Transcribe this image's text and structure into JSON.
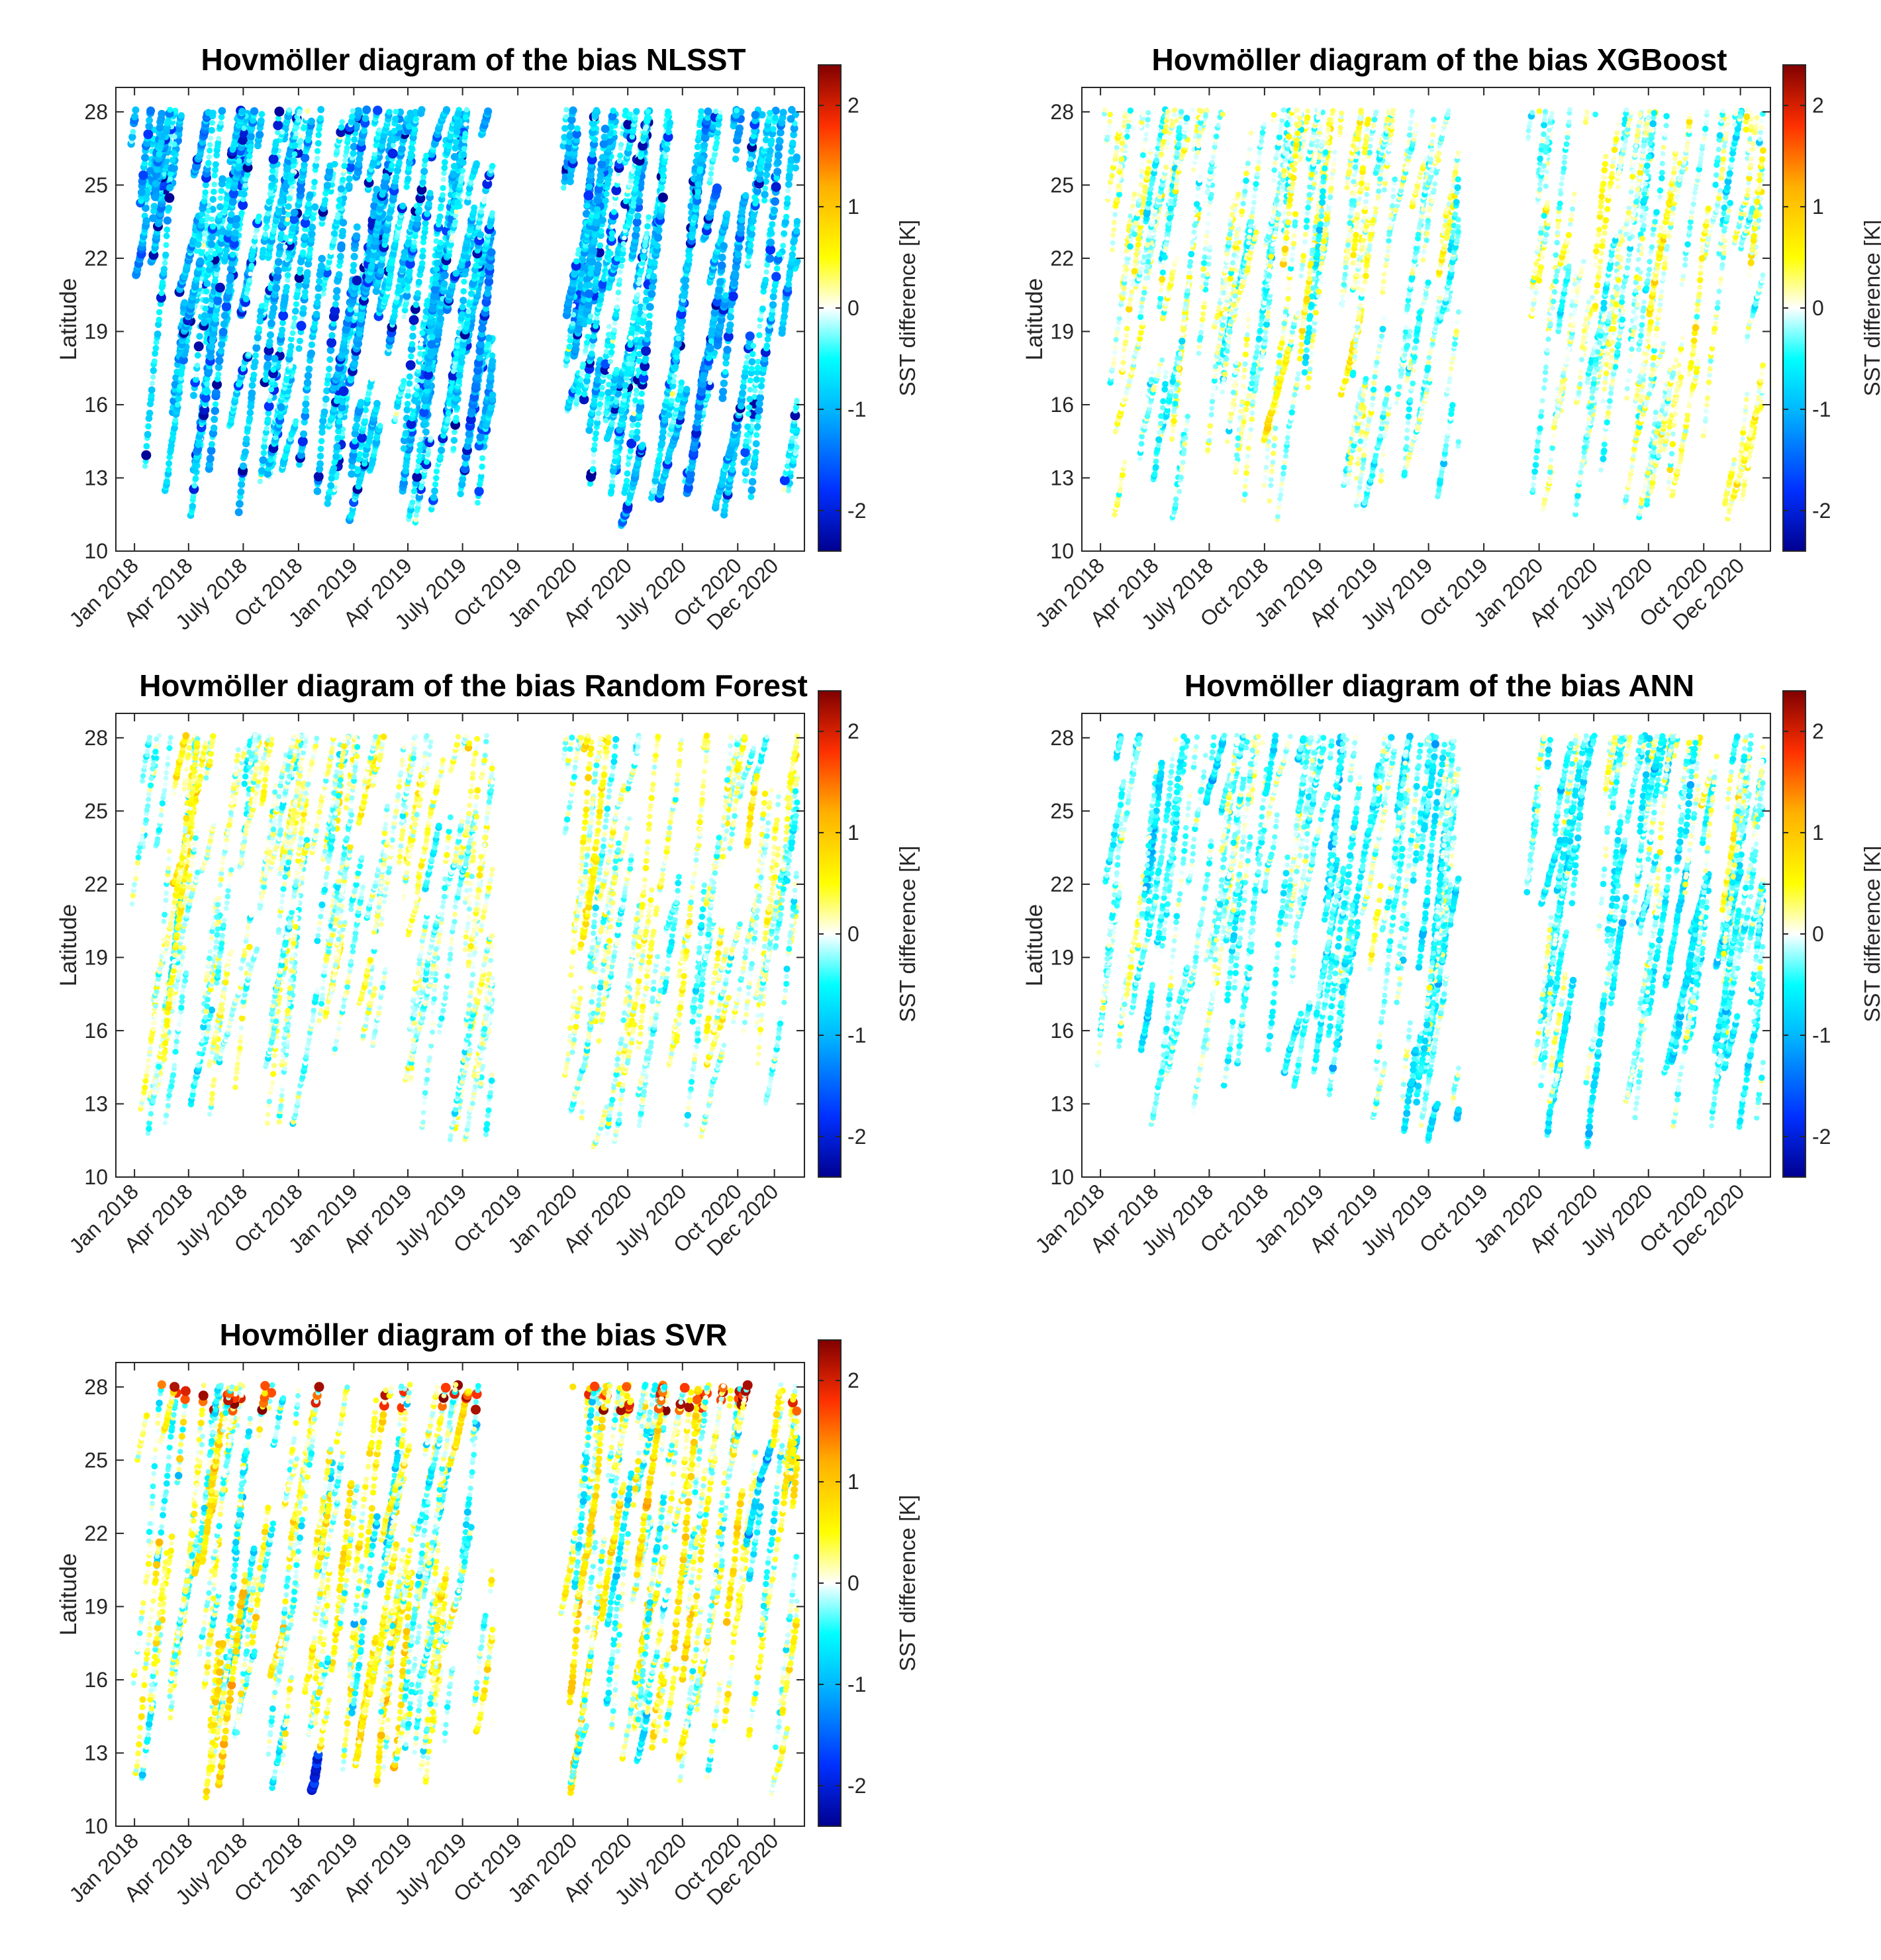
{
  "figure": {
    "colorbar": {
      "label": "SST difference [K]",
      "range": [
        -2.4,
        2.4
      ],
      "ticks": [
        -2,
        -1,
        0,
        1,
        2
      ],
      "colormap": "jet-white-center",
      "colors": [
        "#00008f",
        "#0030ff",
        "#00b8ff",
        "#00ffff",
        "#ffffff",
        "#ffff00",
        "#ffb000",
        "#ff3000",
        "#800000"
      ]
    },
    "panels": [
      {
        "id": "nlsst",
        "title": "Hovmöller diagram of the bias NLSST"
      },
      {
        "id": "xgboost",
        "title": "Hovmöller diagram of the bias XGBoost"
      },
      {
        "id": "random-forest",
        "title": "Hovmöller diagram of the bias Random Forest"
      },
      {
        "id": "ann",
        "title": "Hovmöller diagram of the bias ANN"
      },
      {
        "id": "svr",
        "title": "Hovmöller diagram of the bias SVR"
      }
    ]
  },
  "chart_data": [
    {
      "type": "scatter",
      "title": "Hovmöller diagram of the bias NLSST",
      "xlabel": "",
      "ylabel": "Latitude",
      "clabel": "SST difference [K]",
      "xlim": [
        "2017-12-01",
        "2021-01-20"
      ],
      "ylim": [
        10,
        29
      ],
      "xticks": [
        "Jan 2018",
        "Apr 2018",
        "July 2018",
        "Oct 2018",
        "Jan 2019",
        "Apr 2019",
        "July 2019",
        "Oct 2019",
        "Jan 2020",
        "Apr 2020",
        "July 2020",
        "Oct 2020",
        "Dec 2020"
      ],
      "yticks": [
        10,
        13,
        16,
        19,
        22,
        25,
        28
      ],
      "clim": [
        -2.4,
        2.4
      ],
      "cticks": [
        -2,
        -1,
        0,
        1,
        2
      ],
      "data_gap": [
        "2019-08-20",
        "2019-12-10"
      ],
      "mean_bias": -0.7,
      "spread": 0.4,
      "note": "dense points, predominantly cyan/blue (negative bias), dark blue points mid-2018"
    },
    {
      "type": "scatter",
      "title": "Hovmöller diagram of the bias XGBoost",
      "xlabel": "",
      "ylabel": "Latitude",
      "clabel": "SST difference [K]",
      "xlim": [
        "2017-12-01",
        "2021-01-20"
      ],
      "ylim": [
        10,
        29
      ],
      "xticks": [
        "Jan 2018",
        "Apr 2018",
        "July 2018",
        "Oct 2018",
        "Jan 2019",
        "Apr 2019",
        "July 2019",
        "Oct 2019",
        "Jan 2020",
        "Apr 2020",
        "July 2020",
        "Oct 2020",
        "Dec 2020"
      ],
      "yticks": [
        10,
        13,
        16,
        19,
        22,
        25,
        28
      ],
      "clim": [
        -2.4,
        2.4
      ],
      "cticks": [
        -2,
        -1,
        0,
        1,
        2
      ],
      "data_gap": [
        "2019-08-20",
        "2019-12-10"
      ],
      "mean_bias": 0.0,
      "spread": 0.35,
      "note": "mostly near-zero bias, mixture of light cyan and yellow"
    },
    {
      "type": "scatter",
      "title": "Hovmöller diagram of the bias Random Forest",
      "xlabel": "",
      "ylabel": "Latitude",
      "clabel": "SST difference [K]",
      "xlim": [
        "2017-12-01",
        "2021-01-20"
      ],
      "ylim": [
        10,
        29
      ],
      "xticks": [
        "Jan 2018",
        "Apr 2018",
        "July 2018",
        "Oct 2018",
        "Jan 2019",
        "Apr 2019",
        "July 2019",
        "Oct 2019",
        "Jan 2020",
        "Apr 2020",
        "July 2020",
        "Oct 2020",
        "Dec 2020"
      ],
      "yticks": [
        10,
        13,
        16,
        19,
        22,
        25,
        28
      ],
      "clim": [
        -2.4,
        2.4
      ],
      "cticks": [
        -2,
        -1,
        0,
        1,
        2
      ],
      "data_gap": [
        "2019-08-20",
        "2019-12-10"
      ],
      "mean_bias": 0.0,
      "spread": 0.35,
      "note": "mostly near-zero bias, mixture of light cyan and yellow"
    },
    {
      "type": "scatter",
      "title": "Hovmöller diagram of the bias ANN",
      "xlabel": "",
      "ylabel": "Latitude",
      "clabel": "SST difference [K]",
      "xlim": [
        "2017-12-01",
        "2021-01-20"
      ],
      "ylim": [
        10,
        29
      ],
      "xticks": [
        "Jan 2018",
        "Apr 2018",
        "July 2018",
        "Oct 2018",
        "Jan 2019",
        "Apr 2019",
        "July 2019",
        "Oct 2019",
        "Jan 2020",
        "Apr 2020",
        "July 2020",
        "Oct 2020",
        "Dec 2020"
      ],
      "yticks": [
        10,
        13,
        16,
        19,
        22,
        25,
        28
      ],
      "clim": [
        -2.4,
        2.4
      ],
      "cticks": [
        -2,
        -1,
        0,
        1,
        2
      ],
      "data_gap": [
        "2019-08-20",
        "2019-12-10"
      ],
      "mean_bias": -0.25,
      "spread": 0.35,
      "note": "slightly negative bias, mostly cyan with some yellow"
    },
    {
      "type": "scatter",
      "title": "Hovmöller diagram of the bias SVR",
      "xlabel": "",
      "ylabel": "Latitude",
      "clabel": "SST difference [K]",
      "xlim": [
        "2017-12-01",
        "2021-01-20"
      ],
      "ylim": [
        10,
        29
      ],
      "xticks": [
        "Jan 2018",
        "Apr 2018",
        "July 2018",
        "Oct 2018",
        "Jan 2019",
        "Apr 2019",
        "July 2019",
        "Oct 2019",
        "Jan 2020",
        "Apr 2020",
        "July 2020",
        "Oct 2020",
        "Dec 2020"
      ],
      "yticks": [
        10,
        13,
        16,
        19,
        22,
        25,
        28
      ],
      "clim": [
        -2.4,
        2.4
      ],
      "cticks": [
        -2,
        -1,
        0,
        1,
        2
      ],
      "data_gap": [
        "2019-08-20",
        "2019-12-10"
      ],
      "mean_bias": 0.05,
      "spread": 0.45,
      "note": "near-zero bias with red/dark red points near 28 N and blue cluster near 12 N in late 2018"
    }
  ]
}
